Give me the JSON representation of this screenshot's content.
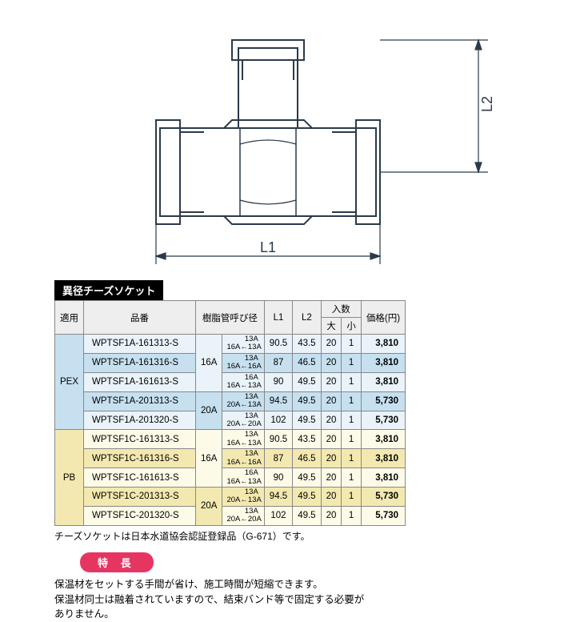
{
  "diagram": {
    "label_L1": "L1",
    "label_L2": "L2",
    "stroke": "#2a3a4a",
    "fill": "#ffffff"
  },
  "table": {
    "title": "異径チーズソケット",
    "headers": {
      "usage": "適用",
      "part": "品番",
      "pipe": "樹脂管呼び径",
      "L1": "L1",
      "L2": "L2",
      "qty": "入数",
      "qty_big": "大",
      "qty_small": "小",
      "price": "価格(円)"
    },
    "groups": [
      {
        "usage": "PEX",
        "usage_class": "usage-pex",
        "sizes": [
          {
            "label": "16A",
            "rows": [
              {
                "cls": "row-pex-light",
                "part": "WPTSF1A-161313-S",
                "s1": "13A",
                "s2": "16A←13A",
                "L1": "90.5",
                "L2": "43.5",
                "big": "20",
                "small": "1",
                "price": "3,810"
              },
              {
                "cls": "row-pex-dark",
                "part": "WPTSF1A-161316-S",
                "s1": "13A",
                "s2": "16A←16A",
                "L1": "87",
                "L2": "46.5",
                "big": "20",
                "small": "1",
                "price": "3,810"
              },
              {
                "cls": "row-pex-light",
                "part": "WPTSF1A-161613-S",
                "s1": "16A",
                "s2": "16A←13A",
                "L1": "90",
                "L2": "49.5",
                "big": "20",
                "small": "1",
                "price": "3,810"
              }
            ]
          },
          {
            "label": "20A",
            "rows": [
              {
                "cls": "row-pex-dark",
                "part": "WPTSF1A-201313-S",
                "s1": "13A",
                "s2": "20A←13A",
                "L1": "94.5",
                "L2": "49.5",
                "big": "20",
                "small": "1",
                "price": "5,730"
              },
              {
                "cls": "row-pex-light",
                "part": "WPTSF1A-201320-S",
                "s1": "13A",
                "s2": "20A←20A",
                "L1": "102",
                "L2": "49.5",
                "big": "20",
                "small": "1",
                "price": "5,730"
              }
            ]
          }
        ]
      },
      {
        "usage": "PB",
        "usage_class": "usage-pb",
        "sizes": [
          {
            "label": "16A",
            "rows": [
              {
                "cls": "row-pb-light",
                "part": "WPTSF1C-161313-S",
                "s1": "13A",
                "s2": "16A←13A",
                "L1": "90.5",
                "L2": "43.5",
                "big": "20",
                "small": "1",
                "price": "3,810"
              },
              {
                "cls": "row-pb-dark",
                "part": "WPTSF1C-161316-S",
                "s1": "13A",
                "s2": "16A←16A",
                "L1": "87",
                "L2": "46.5",
                "big": "20",
                "small": "1",
                "price": "3,810"
              },
              {
                "cls": "row-pb-light",
                "part": "WPTSF1C-161613-S",
                "s1": "16A",
                "s2": "16A←13A",
                "L1": "90",
                "L2": "49.5",
                "big": "20",
                "small": "1",
                "price": "3,810"
              }
            ]
          },
          {
            "label": "20A",
            "rows": [
              {
                "cls": "row-pb-dark",
                "part": "WPTSF1C-201313-S",
                "s1": "13A",
                "s2": "20A←13A",
                "L1": "94.5",
                "L2": "49.5",
                "big": "20",
                "small": "1",
                "price": "5,730"
              },
              {
                "cls": "row-pb-light",
                "part": "WPTSF1C-201320-S",
                "s1": "13A",
                "s2": "20A←20A",
                "L1": "102",
                "L2": "49.5",
                "big": "20",
                "small": "1",
                "price": "5,730"
              }
            ]
          }
        ]
      }
    ]
  },
  "note": "チーズソケットは日本水道協会認証登録品（G-671）です。",
  "feature": {
    "badge": "特 長",
    "line1": "保温材をセットする手間が省け、施工時間が短縮できます。",
    "line2": "保温材同士は融着されていますので、結束バンド等で固定する必要が",
    "line3": "ありません。"
  }
}
